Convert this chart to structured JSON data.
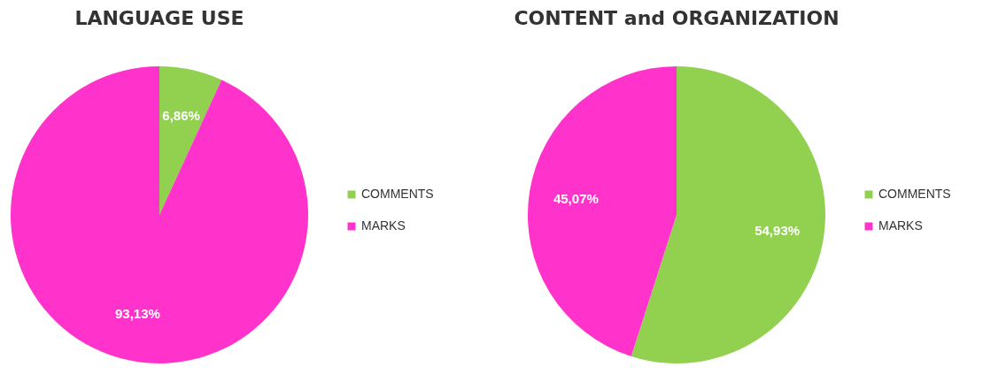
{
  "chart_data": [
    {
      "type": "pie",
      "title": "LANGUAGE USE",
      "categories": [
        "COMMENTS",
        "MARKS"
      ],
      "values": [
        6.86,
        93.13
      ],
      "colors": [
        "#92d050",
        "#ff33cc"
      ],
      "value_labels": [
        "6,86%",
        "93,13%"
      ],
      "legend": "right"
    },
    {
      "type": "pie",
      "title": "CONTENT and ORGANIZATION",
      "categories": [
        "COMMENTS",
        "MARKS"
      ],
      "values": [
        54.93,
        45.07
      ],
      "colors": [
        "#92d050",
        "#ff33cc"
      ],
      "value_labels": [
        "54,93%",
        "45,07%"
      ],
      "legend": "right"
    }
  ]
}
